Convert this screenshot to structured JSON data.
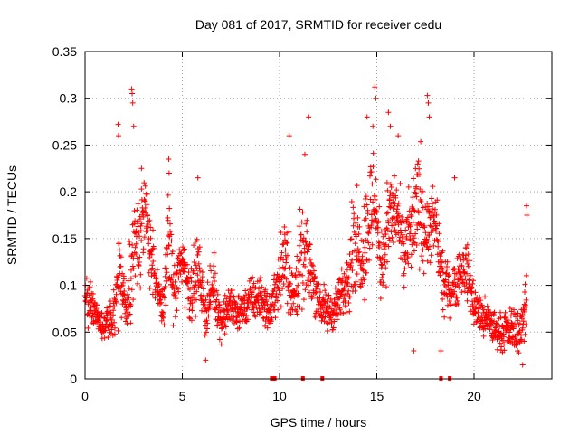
{
  "chart_data": {
    "type": "scatter",
    "title": "Day 081 of 2017, SRMTID for receiver cedu",
    "xlabel": "GPS time / hours",
    "ylabel": "SRMTID / TECUs",
    "xlim": [
      0,
      24
    ],
    "ylim": [
      0,
      0.35
    ],
    "xticks": [
      0,
      5,
      10,
      15,
      20
    ],
    "xtick_labels": [
      "0",
      "5",
      "10",
      "15",
      "20"
    ],
    "yticks": [
      0,
      0.05,
      0.1,
      0.15,
      0.2,
      0.25,
      0.3,
      0.35
    ],
    "ytick_labels": [
      "0",
      "0.05",
      "0.1",
      "0.15",
      "0.2",
      "0.25",
      "0.3",
      "0.35"
    ],
    "grid": true,
    "marker": "plus",
    "color": "#ff0000",
    "series": [
      {
        "name": "SRMTID",
        "envelope": {
          "x": [
            0,
            0.5,
            1.0,
            1.5,
            1.8,
            2.1,
            2.5,
            2.8,
            3.2,
            3.6,
            4.0,
            4.3,
            4.6,
            5.0,
            5.4,
            5.8,
            6.2,
            6.6,
            7.0,
            7.5,
            8.0,
            8.5,
            9.0,
            9.5,
            10.0,
            10.3,
            10.7,
            11.0,
            11.4,
            11.8,
            12.2,
            12.6,
            13.0,
            13.4,
            13.8,
            14.2,
            14.6,
            14.9,
            15.2,
            15.6,
            16.0,
            16.4,
            16.8,
            17.2,
            17.6,
            18.0,
            18.4,
            18.8,
            19.2,
            19.6,
            20.0,
            20.4,
            20.8,
            21.2,
            21.6,
            22.0,
            22.4,
            22.7
          ],
          "center": [
            0.09,
            0.07,
            0.055,
            0.075,
            0.12,
            0.065,
            0.14,
            0.16,
            0.17,
            0.1,
            0.075,
            0.15,
            0.09,
            0.13,
            0.09,
            0.12,
            0.07,
            0.1,
            0.06,
            0.08,
            0.07,
            0.085,
            0.085,
            0.07,
            0.11,
            0.14,
            0.08,
            0.12,
            0.13,
            0.1,
            0.075,
            0.07,
            0.08,
            0.1,
            0.15,
            0.13,
            0.17,
            0.2,
            0.12,
            0.17,
            0.18,
            0.13,
            0.16,
            0.19,
            0.15,
            0.17,
            0.1,
            0.095,
            0.11,
            0.12,
            0.08,
            0.065,
            0.06,
            0.05,
            0.05,
            0.055,
            0.05,
            0.09
          ],
          "spread": [
            0.035,
            0.025,
            0.02,
            0.04,
            0.08,
            0.025,
            0.12,
            0.07,
            0.06,
            0.04,
            0.03,
            0.07,
            0.04,
            0.05,
            0.04,
            0.05,
            0.03,
            0.04,
            0.025,
            0.03,
            0.025,
            0.03,
            0.03,
            0.025,
            0.04,
            0.08,
            0.04,
            0.07,
            0.05,
            0.04,
            0.03,
            0.03,
            0.03,
            0.04,
            0.08,
            0.05,
            0.1,
            0.07,
            0.05,
            0.07,
            0.05,
            0.06,
            0.06,
            0.09,
            0.05,
            0.05,
            0.04,
            0.03,
            0.04,
            0.04,
            0.03,
            0.03,
            0.025,
            0.025,
            0.025,
            0.03,
            0.03,
            0.06
          ]
        },
        "peaks": [
          {
            "x": 1.7,
            "y": 0.272
          },
          {
            "x": 1.72,
            "y": 0.26
          },
          {
            "x": 2.4,
            "y": 0.31
          },
          {
            "x": 2.42,
            "y": 0.305
          },
          {
            "x": 2.45,
            "y": 0.295
          },
          {
            "x": 2.5,
            "y": 0.27
          },
          {
            "x": 2.9,
            "y": 0.225
          },
          {
            "x": 4.3,
            "y": 0.235
          },
          {
            "x": 4.32,
            "y": 0.22
          },
          {
            "x": 5.8,
            "y": 0.215
          },
          {
            "x": 10.5,
            "y": 0.26
          },
          {
            "x": 11.5,
            "y": 0.28
          },
          {
            "x": 11.3,
            "y": 0.24
          },
          {
            "x": 14.5,
            "y": 0.28
          },
          {
            "x": 14.9,
            "y": 0.312
          },
          {
            "x": 14.95,
            "y": 0.3
          },
          {
            "x": 14.8,
            "y": 0.27
          },
          {
            "x": 15.6,
            "y": 0.285
          },
          {
            "x": 15.7,
            "y": 0.27
          },
          {
            "x": 16.1,
            "y": 0.26
          },
          {
            "x": 17.6,
            "y": 0.303
          },
          {
            "x": 17.65,
            "y": 0.295
          },
          {
            "x": 17.7,
            "y": 0.28
          },
          {
            "x": 19.0,
            "y": 0.215
          },
          {
            "x": 22.7,
            "y": 0.185
          },
          {
            "x": 22.72,
            "y": 0.175
          },
          {
            "x": 6.2,
            "y": 0.02
          },
          {
            "x": 16.9,
            "y": 0.03
          },
          {
            "x": 18.3,
            "y": 0.03
          },
          {
            "x": 22.5,
            "y": 0.015
          }
        ],
        "zero_markers": [
          9.6,
          9.75,
          11.2,
          12.2,
          18.3,
          18.75
        ]
      }
    ]
  }
}
